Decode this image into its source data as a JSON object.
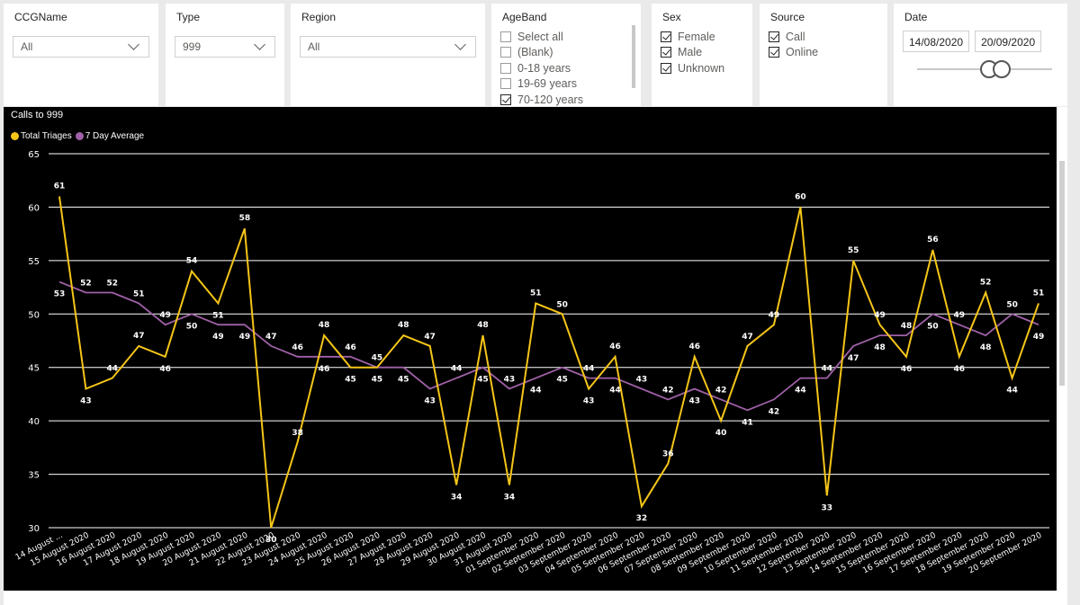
{
  "filters": {
    "ccg": {
      "title": "CCGName",
      "value": "All"
    },
    "type": {
      "title": "Type",
      "value": "999"
    },
    "region": {
      "title": "Region",
      "value": "All"
    },
    "ageband": {
      "title": "AgeBand",
      "options": [
        {
          "label": "Select all",
          "checked": false
        },
        {
          "label": "(Blank)",
          "checked": false
        },
        {
          "label": "0-18 years",
          "checked": false
        },
        {
          "label": "19-69 years",
          "checked": false
        },
        {
          "label": "70-120 years",
          "checked": true
        }
      ]
    },
    "sex": {
      "title": "Sex",
      "options": [
        {
          "label": "Female",
          "checked": true
        },
        {
          "label": "Male",
          "checked": true
        },
        {
          "label": "Unknown",
          "checked": true
        }
      ]
    },
    "source": {
      "title": "Source",
      "options": [
        {
          "label": "Call",
          "checked": true
        },
        {
          "label": "Online",
          "checked": true
        }
      ]
    },
    "date": {
      "title": "Date",
      "start": "14/08/2020",
      "end": "20/09/2020"
    }
  },
  "chart_data": {
    "type": "line",
    "title": "Calls to 999",
    "ylim": [
      30,
      65
    ],
    "yticks": [
      30,
      35,
      40,
      45,
      50,
      55,
      60,
      65
    ],
    "grid": true,
    "legend_position": "top-left",
    "categories": [
      "14 August ...",
      "15 August 2020",
      "16 August 2020",
      "17 August 2020",
      "18 August 2020",
      "19 August 2020",
      "20 August 2020",
      "21 August 2020",
      "22 August 2020",
      "23 August 2020",
      "24 August 2020",
      "25 August 2020",
      "26 August 2020",
      "27 August 2020",
      "28 August 2020",
      "29 August 2020",
      "30 August 2020",
      "31 August 2020",
      "01 September 2020",
      "02 September 2020",
      "03 September 2020",
      "04 September 2020",
      "05 September 2020",
      "06 September 2020",
      "07 September 2020",
      "08 September 2020",
      "09 September 2020",
      "10 September 2020",
      "11 September 2020",
      "12 September 2020",
      "13 September 2020",
      "14 September 2020",
      "15 September 2020",
      "16 September 2020",
      "17 September 2020",
      "18 September 2020",
      "19 September 2020",
      "20 September 2020"
    ],
    "series": [
      {
        "name": "Total Triages",
        "color": "#f5c518",
        "values": [
          61,
          43,
          44,
          47,
          46,
          54,
          51,
          58,
          30,
          38,
          48,
          45,
          45,
          48,
          47,
          34,
          48,
          34,
          51,
          50,
          43,
          46,
          32,
          36,
          46,
          40,
          47,
          49,
          60,
          33,
          55,
          49,
          46,
          56,
          46,
          52,
          44,
          51
        ]
      },
      {
        "name": "7 Day Average",
        "color": "#a061a8",
        "values": [
          53,
          52,
          52,
          51,
          49,
          50,
          49,
          49,
          47,
          46,
          46,
          46,
          45,
          45,
          43,
          44,
          45,
          43,
          44,
          45,
          44,
          44,
          43,
          42,
          43,
          42,
          41,
          42,
          44,
          44,
          47,
          48,
          48,
          50,
          49,
          48,
          50,
          49
        ]
      }
    ]
  }
}
